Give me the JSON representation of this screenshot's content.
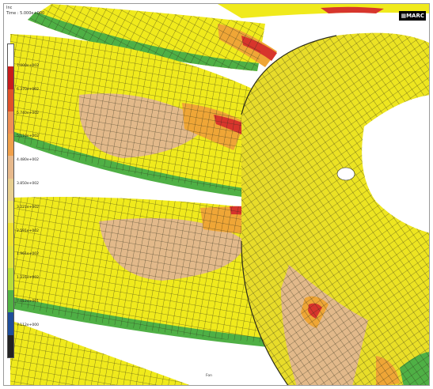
{
  "header": {
    "line1": "Inc",
    "line2": "Time : 5.000e+000"
  },
  "logo": {
    "text": "MARC"
  },
  "legend": {
    "swatches": [
      "#ffffff",
      "#c71c1c",
      "#e0522a",
      "#ef8f55",
      "#f0a04a",
      "#e7b98c",
      "#e8cf8f",
      "#eee36a",
      "#eee22e",
      "#dfe23a",
      "#b8dd3a",
      "#52b344",
      "#1f4e9a",
      "#232323"
    ],
    "labels": [
      "7.000e+002",
      "6.370e+002",
      "5.740e+002",
      "5.110e+002",
      "4.480e+002",
      "3.850e+002",
      "3.221e+002",
      "2.591e+002",
      "1.961e+002",
      "1.331e+002",
      "7.012e+001",
      "7.112e+000"
    ]
  },
  "fea_colors": {
    "yellow": "#f0ea1c",
    "tan": "#e2b98a",
    "orange": "#efa636",
    "red": "#d7352c",
    "green": "#4fb045",
    "mesh": "#2a2a18",
    "white": "#ffffff"
  },
  "bottom": {
    "tag": "Fon"
  }
}
